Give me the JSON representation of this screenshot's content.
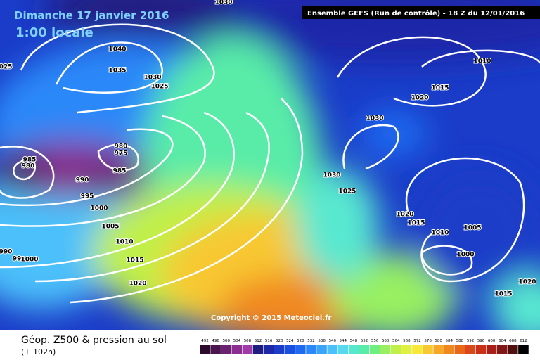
{
  "header": {
    "date": "Dimanche 17 janvier 2016",
    "time": "1:00 locale",
    "run": "Ensemble GEFS  (Run de contrôle)  -  18 Z du 12/01/2016",
    "copyright": "Copyright © 2015 Meteociel.fr"
  },
  "isobar_labels": [
    "1030",
    "025",
    "1040",
    "1035",
    "1030",
    "1025",
    "985",
    "980",
    "980",
    "975",
    "985",
    "990",
    "995",
    "1000",
    "1005",
    "1010",
    "1015",
    "1020",
    "1030",
    "1030",
    "1025",
    "1010",
    "1015",
    "1020",
    "1020",
    "1015",
    "1010",
    "1005",
    "1000",
    "1020",
    "1015",
    "990",
    "99",
    "1000"
  ],
  "footer": {
    "title": "Géop. Z500 & pression au sol",
    "lead": "(+ 102h)"
  },
  "scale": {
    "labels": [
      "492",
      "496",
      "500",
      "504",
      "508",
      "512",
      "516",
      "520",
      "524",
      "528",
      "532",
      "536",
      "540",
      "544",
      "548",
      "552",
      "556",
      "560",
      "564",
      "568",
      "572",
      "576",
      "580",
      "584",
      "588",
      "592",
      "596",
      "600",
      "604",
      "608",
      "612"
    ],
    "colors": [
      "#2b0a2b",
      "#4b1650",
      "#6b2270",
      "#8a2e90",
      "#a03aa8",
      "#201c80",
      "#1c28a8",
      "#1a3cc8",
      "#1a50e0",
      "#1e6af0",
      "#2a88f8",
      "#3aa4fa",
      "#4cc0fa",
      "#5ad8f0",
      "#58e8d0",
      "#58eca8",
      "#70ee80",
      "#98f060",
      "#c0f048",
      "#e0f040",
      "#f8e838",
      "#f8c830",
      "#f8a828",
      "#f08820",
      "#e86818",
      "#d84818",
      "#c83018",
      "#a82018",
      "#801818",
      "#501010",
      "#000000"
    ]
  }
}
